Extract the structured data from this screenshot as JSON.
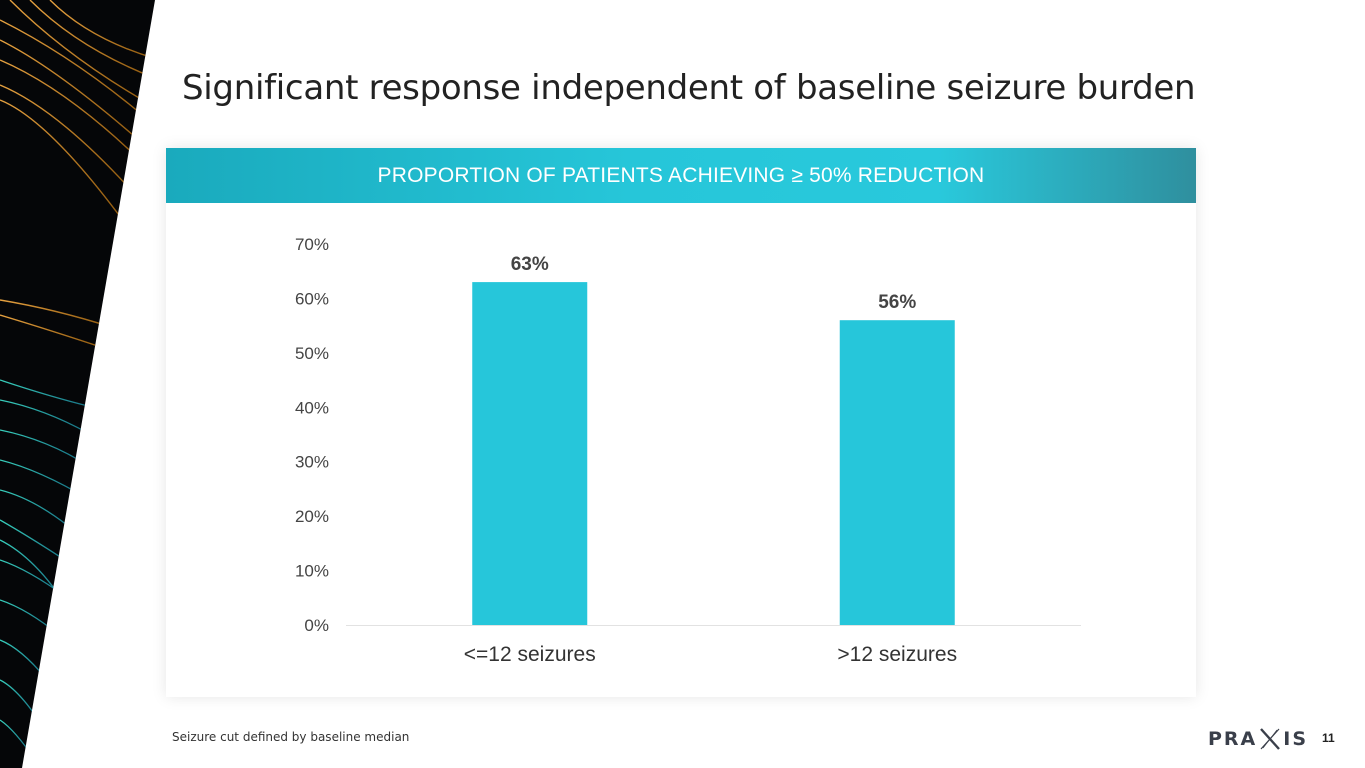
{
  "slide": {
    "title": "Significant response independent of baseline seizure burden",
    "footnote": "Seizure cut defined by baseline median",
    "page_number": "11",
    "logo_text_left": "PRA",
    "logo_text_right": "IS"
  },
  "colors": {
    "bar": "#26c6da",
    "banner": "#26c6d9",
    "title": "#222222",
    "axis_text": "#444444"
  },
  "chart_data": {
    "type": "bar",
    "title": "PROPORTION OF PATIENTS ACHIEVING ≥ 50% REDUCTION",
    "categories": [
      "<=12 seizures",
      ">12 seizures"
    ],
    "values": [
      63,
      56
    ],
    "data_labels": [
      "63%",
      "56%"
    ],
    "ylim": [
      0,
      70
    ],
    "yticks": [
      0,
      10,
      20,
      30,
      40,
      50,
      60,
      70
    ],
    "ytick_labels": [
      "0%",
      "10%",
      "20%",
      "30%",
      "40%",
      "50%",
      "60%",
      "70%"
    ],
    "xlabel": "",
    "ylabel": "",
    "grid": false,
    "legend": "none"
  }
}
